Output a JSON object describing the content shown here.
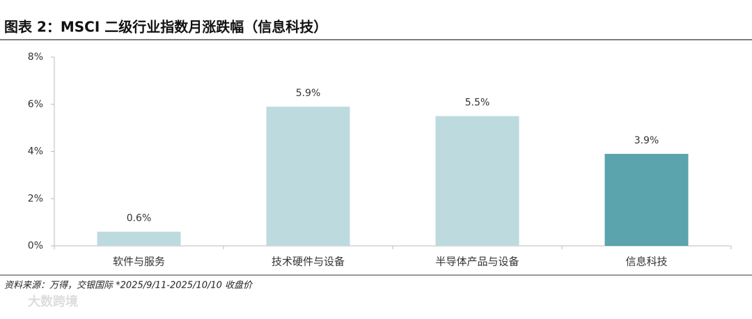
{
  "chart_data": {
    "type": "bar",
    "title": "图表 2：MSCI 二级行业指数月涨跌幅（信息科技）",
    "categories": [
      "软件与服务",
      "技术硬件与设备",
      "半导体产品与设备",
      "信息科技"
    ],
    "values": [
      0.6,
      5.9,
      5.5,
      3.9
    ],
    "value_labels": [
      "0.6%",
      "5.9%",
      "5.5%",
      "3.9%"
    ],
    "colors": [
      "#bddbdf",
      "#bddbdf",
      "#bddbdf",
      "#5ba3ad"
    ],
    "ylim": [
      0,
      8
    ],
    "yticks": [
      {
        "value": 0,
        "label": "0%"
      },
      {
        "value": 2,
        "label": "2%"
      },
      {
        "value": 4,
        "label": "4%"
      },
      {
        "value": 6,
        "label": "6%"
      },
      {
        "value": 8,
        "label": "8%"
      }
    ],
    "grid": false,
    "source": "资料来源：万得，交银国际   *2025/9/11-2025/10/10 收盘价",
    "watermark": "大数跨境"
  }
}
